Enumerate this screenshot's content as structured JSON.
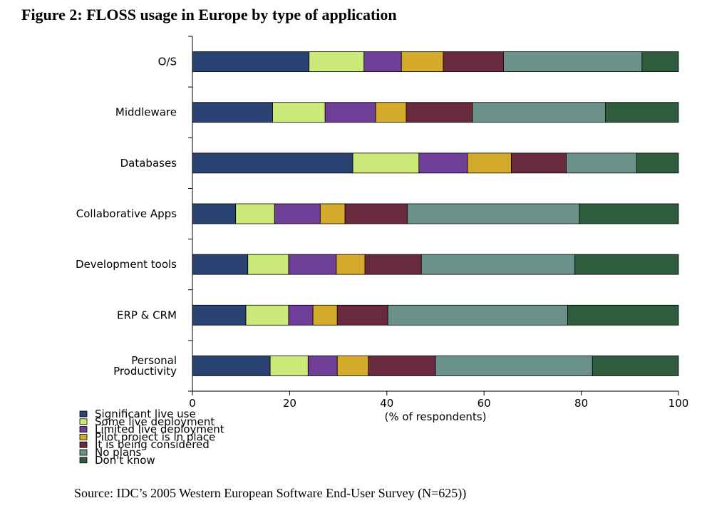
{
  "chart_data": {
    "type": "bar",
    "orientation": "horizontal",
    "stacked": true,
    "title": "Figure 2: FLOSS usage in Europe by type of application",
    "xlabel": "(% of respondents)",
    "xlim": [
      0,
      100
    ],
    "xticks": [
      0,
      20,
      40,
      60,
      80,
      100
    ],
    "legend_position": "bottom-left",
    "categories": [
      [
        "O/S"
      ],
      [
        "Middleware"
      ],
      [
        "Databases"
      ],
      [
        "Collaborative Apps"
      ],
      [
        "Development tools"
      ],
      [
        "ERP & CRM"
      ],
      [
        "Personal",
        "Productivity"
      ]
    ],
    "series": [
      {
        "name": "Significant live use",
        "color": "#2a4373",
        "values": [
          24.0,
          16.5,
          33.0,
          8.9,
          11.4,
          11.0,
          16.0
        ]
      },
      {
        "name": "Some live deployment",
        "color": "#cbea7a",
        "values": [
          11.3,
          10.8,
          13.6,
          8.0,
          8.4,
          8.8,
          7.8
        ]
      },
      {
        "name": "Limited live deployment",
        "color": "#6f3f97",
        "values": [
          7.7,
          10.4,
          10.0,
          9.4,
          9.8,
          5.0,
          6.0
        ]
      },
      {
        "name": "Pilot project is in place",
        "color": "#d4aa2a",
        "values": [
          8.6,
          6.3,
          9.0,
          5.1,
          5.9,
          5.0,
          6.4
        ]
      },
      {
        "name": "It is being considered",
        "color": "#6a2a3e",
        "values": [
          12.4,
          13.6,
          11.3,
          12.8,
          11.6,
          10.4,
          13.8
        ]
      },
      {
        "name": "No plans",
        "color": "#6a928b",
        "values": [
          28.5,
          27.4,
          14.5,
          35.4,
          31.6,
          37.0,
          32.3
        ]
      },
      {
        "name": "Don't know",
        "color": "#305c3e",
        "values": [
          7.5,
          15.0,
          8.6,
          20.4,
          21.3,
          22.8,
          17.7
        ]
      }
    ]
  },
  "source": "Source: IDC’s 2005 Western European Software End-User Survey (N=625))"
}
